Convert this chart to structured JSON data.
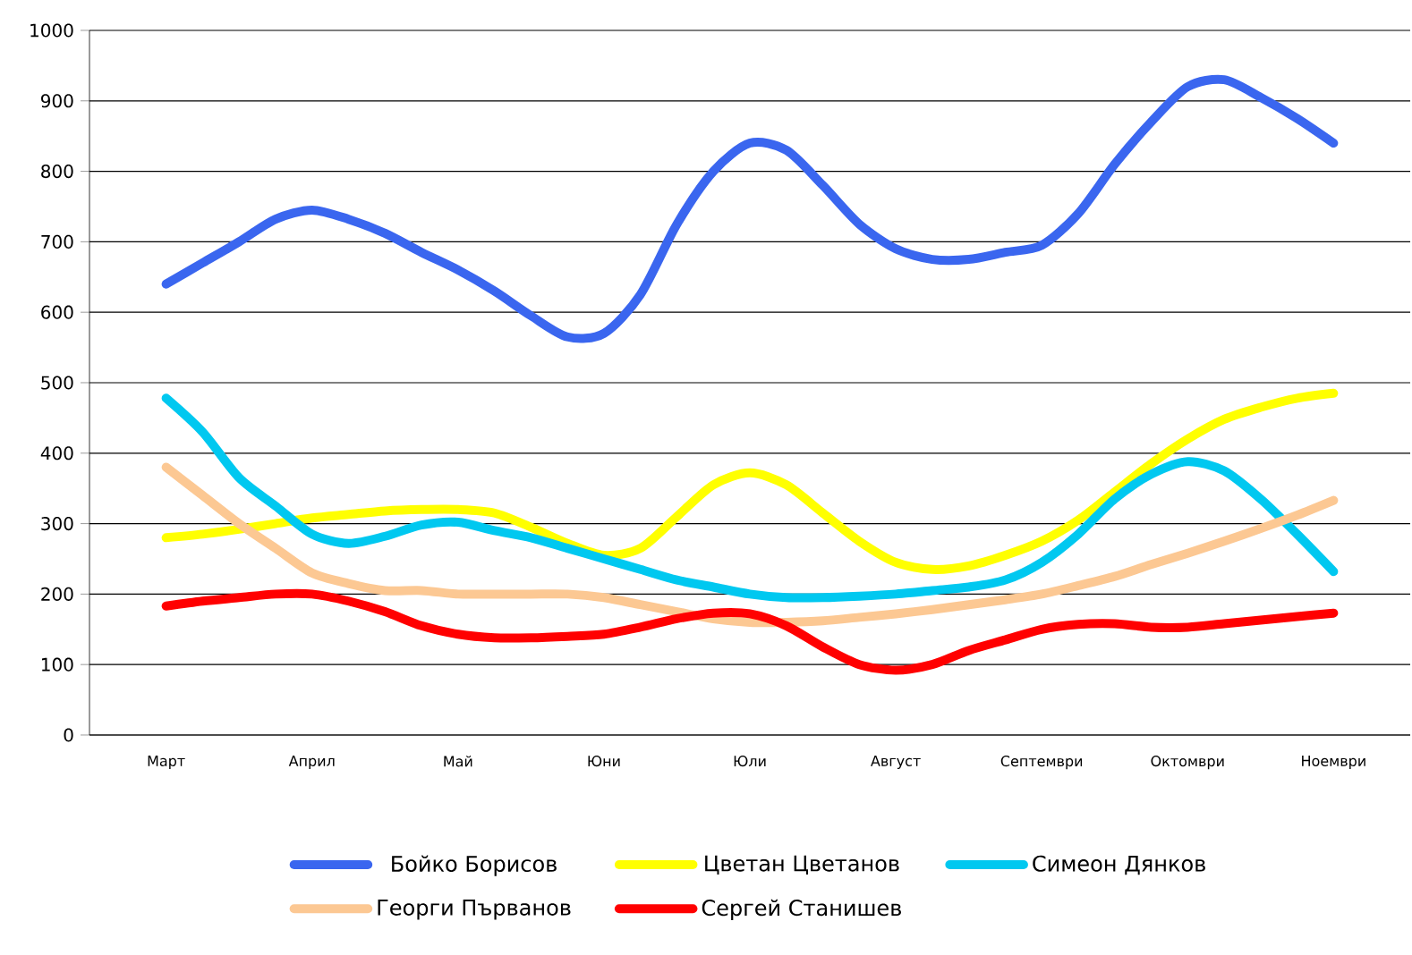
{
  "chart_data": {
    "type": "line",
    "categories": [
      "Март",
      null,
      null,
      null,
      "Април",
      null,
      null,
      null,
      "Май",
      null,
      null,
      null,
      "Юни",
      null,
      null,
      null,
      "Юли",
      null,
      null,
      null,
      "Август",
      null,
      null,
      null,
      "Септември",
      null,
      null,
      null,
      "Октомври",
      null,
      null,
      null,
      "Ноември"
    ],
    "ylim": [
      0,
      1000
    ],
    "yticks": [
      0,
      100,
      200,
      300,
      400,
      500,
      600,
      700,
      800,
      900,
      1000
    ],
    "grid": "y",
    "legend": "bottom",
    "marker": "none",
    "line_style": "solid",
    "series": [
      {
        "name": "Бойко Борисов",
        "color": "#3a66ef",
        "values": [
          640,
          670,
          700,
          732,
          745,
          732,
          712,
          685,
          660,
          630,
          595,
          565,
          570,
          625,
          725,
          800,
          840,
          830,
          780,
          725,
          690,
          675,
          675,
          685,
          695,
          740,
          810,
          870,
          920,
          930,
          905,
          875,
          840
        ]
      },
      {
        "name": "Цветан Цветанов",
        "color": "#ffff00",
        "values": [
          280,
          285,
          292,
          300,
          308,
          313,
          318,
          320,
          320,
          315,
          295,
          272,
          255,
          265,
          310,
          355,
          372,
          355,
          315,
          275,
          245,
          235,
          240,
          255,
          275,
          305,
          345,
          385,
          420,
          448,
          465,
          478,
          485
        ]
      },
      {
        "name": "Симеон Дянков",
        "color": "#00c8f0",
        "values": [
          478,
          430,
          365,
          325,
          285,
          272,
          282,
          298,
          302,
          290,
          280,
          265,
          250,
          235,
          220,
          210,
          200,
          195,
          195,
          197,
          200,
          205,
          210,
          220,
          245,
          285,
          335,
          370,
          388,
          375,
          335,
          285,
          232
        ]
      },
      {
        "name": "Георги Първанов",
        "color": "#fcc893",
        "values": [
          380,
          340,
          300,
          265,
          230,
          215,
          205,
          205,
          200,
          200,
          200,
          200,
          195,
          185,
          175,
          165,
          160,
          160,
          162,
          167,
          172,
          178,
          185,
          192,
          200,
          212,
          225,
          242,
          258,
          275,
          293,
          312,
          333
        ]
      },
      {
        "name": "Сергей Станишев",
        "color": "#ff0000",
        "values": [
          183,
          190,
          195,
          200,
          200,
          190,
          175,
          155,
          143,
          138,
          138,
          140,
          143,
          153,
          165,
          173,
          172,
          155,
          125,
          100,
          92,
          100,
          120,
          135,
          150,
          157,
          158,
          153,
          153,
          158,
          163,
          168,
          173
        ]
      }
    ]
  }
}
